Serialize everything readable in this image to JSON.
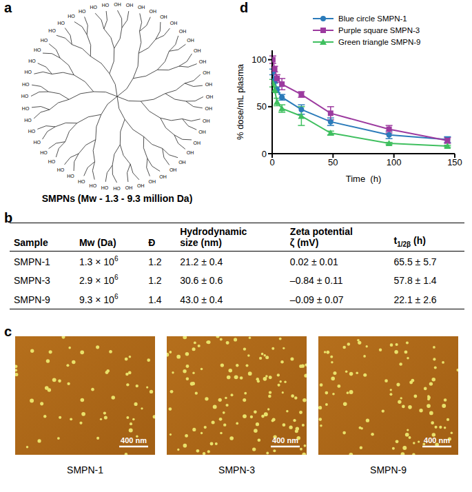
{
  "panel_a": {
    "letter": "a",
    "caption": "SMPNs (Mw - 1.3 - 9.3 million Da)",
    "group_labels": [
      "HO",
      "OH"
    ]
  },
  "panel_b": {
    "letter": "b",
    "table": {
      "header": [
        "Sample",
        "Mw (Da)",
        "Đ",
        [
          "Hydrodynamic",
          "size (nm)"
        ],
        [
          "Zeta potential",
          "ζ (mV)"
        ],
        {
          "base": "t",
          "sub": "1/2β",
          "rest": " (h)"
        }
      ],
      "rows": [
        [
          "SMPN-1",
          {
            "base": "1.3 × 10",
            "sup": "6"
          },
          "1.2",
          "21.2  ± 0.4",
          "0.02 ± 0.01",
          "65.5 ± 5.7"
        ],
        [
          "SMPN-3",
          {
            "base": "2.9 × 10",
            "sup": "6"
          },
          "1.2",
          "30.6 ± 0.6",
          "–0.84 ± 0.11",
          "57.8 ± 1.4"
        ],
        [
          "SMPN-9",
          {
            "base": "9.3 × 10",
            "sup": "6"
          },
          "1.4",
          "43.0 ± 0.4",
          "–0.09 ± 0.07",
          "22.1 ± 2.6"
        ]
      ]
    }
  },
  "panel_c": {
    "letter": "c",
    "images": [
      {
        "caption": "SMPN-1",
        "scale_bar": "400 nm"
      },
      {
        "caption": "SMPN-3",
        "scale_bar": "400 nm"
      },
      {
        "caption": "SMPN-9",
        "scale_bar": "400 nm"
      }
    ]
  },
  "chart_data": {
    "panel_label": "d",
    "type": "line",
    "x_label": "Time  (h)",
    "y_label": "% dose/mL plasma",
    "x": [
      0.5,
      2,
      4,
      8,
      24,
      48,
      96,
      144
    ],
    "xlim": [
      0,
      150
    ],
    "xticks": [
      0,
      50,
      100,
      150
    ],
    "ylim": [
      0,
      110
    ],
    "yticks": [
      0,
      50,
      100
    ],
    "grid": false,
    "legend": "upper right",
    "series": [
      {
        "name": "Blue circle SMPN-1",
        "color": "#2b7bba",
        "marker": "circle",
        "values": [
          87,
          78,
          68,
          60,
          47,
          34,
          20,
          15
        ],
        "errors": [
          3,
          3,
          3,
          3,
          5,
          4,
          4,
          3
        ]
      },
      {
        "name": "Purple square SMPN-3",
        "color": "#9c3a9f",
        "marker": "square",
        "values": [
          100,
          90,
          80,
          74,
          63,
          43,
          26,
          14
        ],
        "errors": [
          4,
          3,
          4,
          6,
          3,
          7,
          4,
          3
        ]
      },
      {
        "name": "Green triangle SMPN-9",
        "color": "#3fbf5f",
        "marker": "triangle",
        "values": [
          75,
          68,
          55,
          48,
          40,
          22,
          11,
          8
        ],
        "errors": [
          4,
          3,
          4,
          4,
          10,
          2,
          1,
          1
        ]
      }
    ]
  }
}
